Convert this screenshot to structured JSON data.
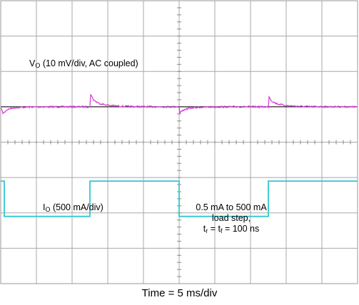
{
  "chart_data": {
    "type": "line",
    "title": "",
    "xlabel": "Time = 5 ms/div",
    "ylabel": "",
    "grid": true,
    "grid_divisions": {
      "x": 10,
      "y": 8
    },
    "x_unit": "ms",
    "x_per_div_ms": 5,
    "xlim": [
      0,
      50
    ],
    "series": [
      {
        "name": "VO (10 mV/div, AC coupled)",
        "label_main": "V",
        "label_sub": "O",
        "label_rest": " (10 mV/div, AC coupled)",
        "color": "#d23ad4",
        "unit": "mV",
        "per_div": 10,
        "ylim_divisions": [
          -4,
          4
        ],
        "x": [
          0,
          0.3,
          0.5,
          0.8,
          1.0,
          1.5,
          2.0,
          3.0,
          4.0,
          5.0,
          6.0,
          8.0,
          10.0,
          12.5,
          12.6,
          12.8,
          13.0,
          13.5,
          14.0,
          15.0,
          16.0,
          17.0,
          18.0,
          20.0,
          22.0,
          24.0,
          25.0,
          25.1,
          25.3,
          25.6,
          26.0,
          26.5,
          27.0,
          28.0,
          29.0,
          30.0,
          31.0,
          33.0,
          35.0,
          37.5,
          37.6,
          37.8,
          38.0,
          38.5,
          39.0,
          40.0,
          41.0,
          42.0,
          43.0,
          45.0,
          47.0,
          50.0
        ],
        "y": [
          0,
          -4,
          -3.5,
          -2.2,
          -1.6,
          -1.0,
          -0.6,
          -0.3,
          -0.15,
          -0.08,
          -0.04,
          -0.01,
          0,
          0,
          8.0,
          6.0,
          4.5,
          2.8,
          1.9,
          1.0,
          0.6,
          0.35,
          0.2,
          0.07,
          0.02,
          0,
          0,
          -3.7,
          -3.0,
          -2.0,
          -1.4,
          -0.9,
          -0.6,
          -0.3,
          -0.15,
          -0.08,
          -0.04,
          -0.01,
          0,
          0,
          6.5,
          4.8,
          3.6,
          2.3,
          1.6,
          0.8,
          0.5,
          0.3,
          0.15,
          0.05,
          0.02,
          0
        ]
      },
      {
        "name": "IO (500 mA/div)",
        "label_main": "I",
        "label_sub": "O",
        "label_rest": " (500 mA/div)",
        "color": "#30c8d2",
        "unit": "mA",
        "per_div": 500,
        "x": [
          0,
          0.5,
          0.5,
          12.5,
          12.5,
          25.0,
          25.0,
          37.5,
          37.5,
          50.0
        ],
        "y": [
          500,
          500,
          0.5,
          0.5,
          500,
          500,
          0.5,
          0.5,
          500,
          500
        ]
      }
    ],
    "reference_line": {
      "color": "#000000"
    },
    "annotation": {
      "line1": "0.5 mA to 500 mA",
      "line2": "load step,",
      "line3_t": "t",
      "line3_r": "r",
      "line3_eq1": " = t",
      "line3_f": "f",
      "line3_eq2": " = 100 ns"
    }
  }
}
